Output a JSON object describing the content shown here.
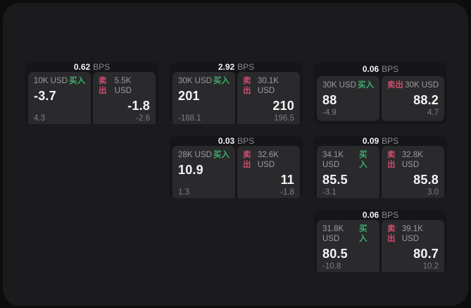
{
  "labels": {
    "bps_suffix": "BPS",
    "buy": "买入",
    "sell": "卖出"
  },
  "colors": {
    "page_bg": "#0d0d0e",
    "panel_bg": "#1b1b1d",
    "card_bg": "#161618",
    "tile_bg": "#2a2a2c",
    "text_primary": "#f5f5f7",
    "text_muted": "#9b9b9f",
    "buy_green": "#3fae6e",
    "sell_red": "#cf4d6d"
  },
  "cards": [
    {
      "bps": "0.62",
      "buy": {
        "amount": "10K USD",
        "value": "-3.7",
        "delta": "4.3"
      },
      "sell": {
        "amount": "5.5K USD",
        "value": "-1.8",
        "delta": "-2.6"
      }
    },
    {
      "bps": "2.92",
      "buy": {
        "amount": "30K USD",
        "value": "201",
        "delta": "-188.1"
      },
      "sell": {
        "amount": "30.1K USD",
        "value": "210",
        "delta": "196.5"
      }
    },
    {
      "bps": "0.06",
      "buy": {
        "amount": "30K USD",
        "value": "88",
        "delta": "-4.9"
      },
      "sell": {
        "amount": "30K USD",
        "value": "88.2",
        "delta": "4.7"
      }
    },
    {
      "bps": "0.03",
      "buy": {
        "amount": "28K USD",
        "value": "10.9",
        "delta": "1.3"
      },
      "sell": {
        "amount": "32.6K USD",
        "value": "11",
        "delta": "-1.8"
      }
    },
    {
      "bps": "0.09",
      "buy": {
        "amount": "34.1K USD",
        "value": "85.5",
        "delta": "-3.1"
      },
      "sell": {
        "amount": "32.8K USD",
        "value": "85.8",
        "delta": "3.0"
      }
    },
    {
      "bps": "0.06",
      "buy": {
        "amount": "31.8K USD",
        "value": "80.5",
        "delta": "-10.8"
      },
      "sell": {
        "amount": "39.1K USD",
        "value": "80.7",
        "delta": "10.2"
      }
    }
  ]
}
